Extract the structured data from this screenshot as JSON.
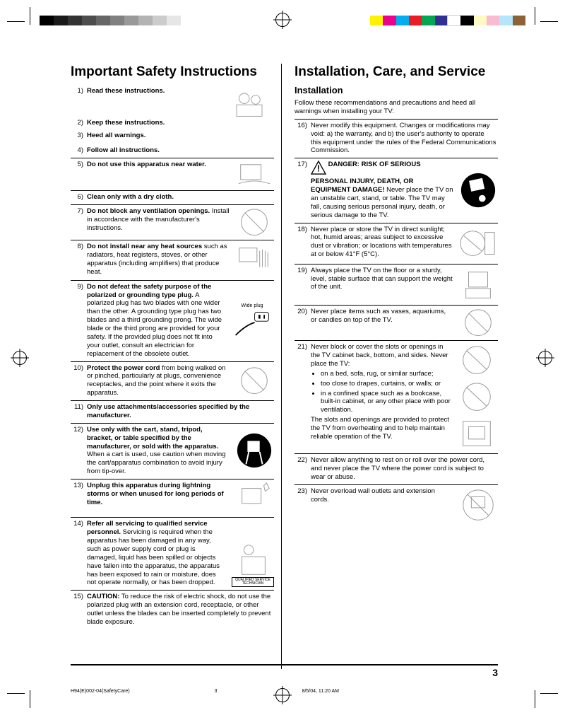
{
  "print_marks": {
    "colorbar_left": [
      "#000000",
      "#1a1a1a",
      "#333333",
      "#4d4d4d",
      "#666666",
      "#808080",
      "#999999",
      "#b3b3b3",
      "#cccccc",
      "#e6e6e6"
    ],
    "colorbar_right": [
      "#fff200",
      "#ec008c",
      "#00aeef",
      "#ed1c24",
      "#00a651",
      "#2e3192",
      "#ffffff",
      "#000000",
      "#fff9c4",
      "#f8bbd0",
      "#b3e5fc",
      "#8c6239"
    ]
  },
  "left": {
    "title": "Important Safety Instructions",
    "items": [
      {
        "n": "1)",
        "bold": "Read these instructions.",
        "rest": ""
      },
      {
        "n": "2)",
        "bold": "Keep these instructions.",
        "rest": ""
      },
      {
        "n": "3)",
        "bold": "Heed all warnings.",
        "rest": ""
      },
      {
        "n": "4)",
        "bold": "Follow all instructions.",
        "rest": ""
      },
      {
        "n": "5)",
        "bold": "Do not use this apparatus near water.",
        "rest": ""
      },
      {
        "n": "6)",
        "bold": "Clean only with a dry cloth.",
        "rest": ""
      },
      {
        "n": "7)",
        "bold": "Do not block any ventilation openings.",
        "rest": " Install in accordance with the manufacturer's instructions."
      },
      {
        "n": "8)",
        "bold": "Do not install near any heat sources",
        "rest": " such as radiators, heat registers, stoves, or other apparatus (including amplifiers) that produce heat."
      },
      {
        "n": "9)",
        "bold": "Do not defeat the safety purpose of the polarized or grounding type plug.",
        "rest": " A polarized plug has two blades with one wider than the other. A grounding type plug has two blades and a third grounding prong. The wide blade or the third prong are provided for your safety. If the provided plug does not fit into your outlet, consult an electrician for replacement of the obsolete outlet.",
        "caption": "Wide plug"
      },
      {
        "n": "10)",
        "bold": "Protect the power cord",
        "rest": " from being walked on or pinched, particularly at plugs, convenience receptacles, and the point where it exits the apparatus."
      },
      {
        "n": "11)",
        "bold": "Only use attachments/accessories specified by the manufacturer.",
        "rest": ""
      },
      {
        "n": "12)",
        "bold": "Use only with the cart, stand, tripod, bracket, or table specified by the manufacturer, or sold with the apparatus.",
        "rest": " When a cart is used, use caution when moving the cart/apparatus combination to avoid injury from tip-over."
      },
      {
        "n": "13)",
        "bold": "Unplug this apparatus during lightning storms or when unused for long periods of time.",
        "rest": ""
      },
      {
        "n": "14)",
        "bold": "Refer all servicing to qualified service personnel.",
        "rest": " Servicing is required when the apparatus has been damaged in any way, such as power supply cord or plug is damaged, liquid has been spilled or objects have fallen into the apparatus, the apparatus has been exposed to rain or moisture, does not operate normally, or has been dropped.",
        "badge": "QUALIFIED SERVICE TECHNICIAN"
      },
      {
        "n": "15)",
        "bold": "CAUTION:",
        "rest": " To reduce the risk of electric shock, do not use the polarized plug with an extension cord, receptacle, or other outlet unless the blades can be inserted completely to prevent blade exposure."
      }
    ]
  },
  "right": {
    "title": "Installation, Care, and Service",
    "subtitle": "Installation",
    "intro": "Follow these recommendations and precautions and heed all warnings when installing your TV:",
    "items": [
      {
        "n": "16)",
        "text": "Never modify this equipment. Changes or modifications may void: a) the warranty, and b) the user's authority to operate this equipment under the rules of the Federal Communications Commission."
      },
      {
        "n": "17)",
        "danger_bold": "DANGER: RISK OF SERIOUS PERSONAL INJURY, DEATH, OR EQUIPMENT DAMAGE!",
        "danger_rest": " Never place the TV on an unstable cart, stand, or table. The TV may fall, causing serious personal injury, death, or serious damage to the TV."
      },
      {
        "n": "18)",
        "text": "Never place or store the TV in direct sunlight; hot, humid areas; areas subject to excessive dust or vibration; or locations with temperatures at or below 41°F (5°C)."
      },
      {
        "n": "19)",
        "text": "Always place the TV on the floor or a sturdy, level, stable surface that can support the weight of the unit."
      },
      {
        "n": "20)",
        "text": "Never place items such as vases, aquariums, or candles on top of the TV."
      },
      {
        "n": "21)",
        "text": "Never block or cover the slots or openings in the TV cabinet back, bottom, and sides. Never place the TV:",
        "bullets": [
          "on a bed, sofa, rug, or similar surface;",
          "too close to drapes, curtains, or walls; or",
          "in a confined space such as a bookcase, built-in cabinet, or any other place with poor ventilation."
        ],
        "after": "The slots and openings are provided to protect the TV from overheating and to help maintain reliable operation of the TV."
      },
      {
        "n": "22)",
        "text": "Never allow anything to rest on or roll over the power cord, and never place the TV where the power cord is subject to wear or abuse."
      },
      {
        "n": "23)",
        "text": "Never overload wall outlets and extension cords."
      }
    ]
  },
  "page_number": "3",
  "footer": {
    "doc": "H94(E)002-04(SafetyCare)",
    "page": "3",
    "date": "8/5/04, 11:20 AM"
  }
}
